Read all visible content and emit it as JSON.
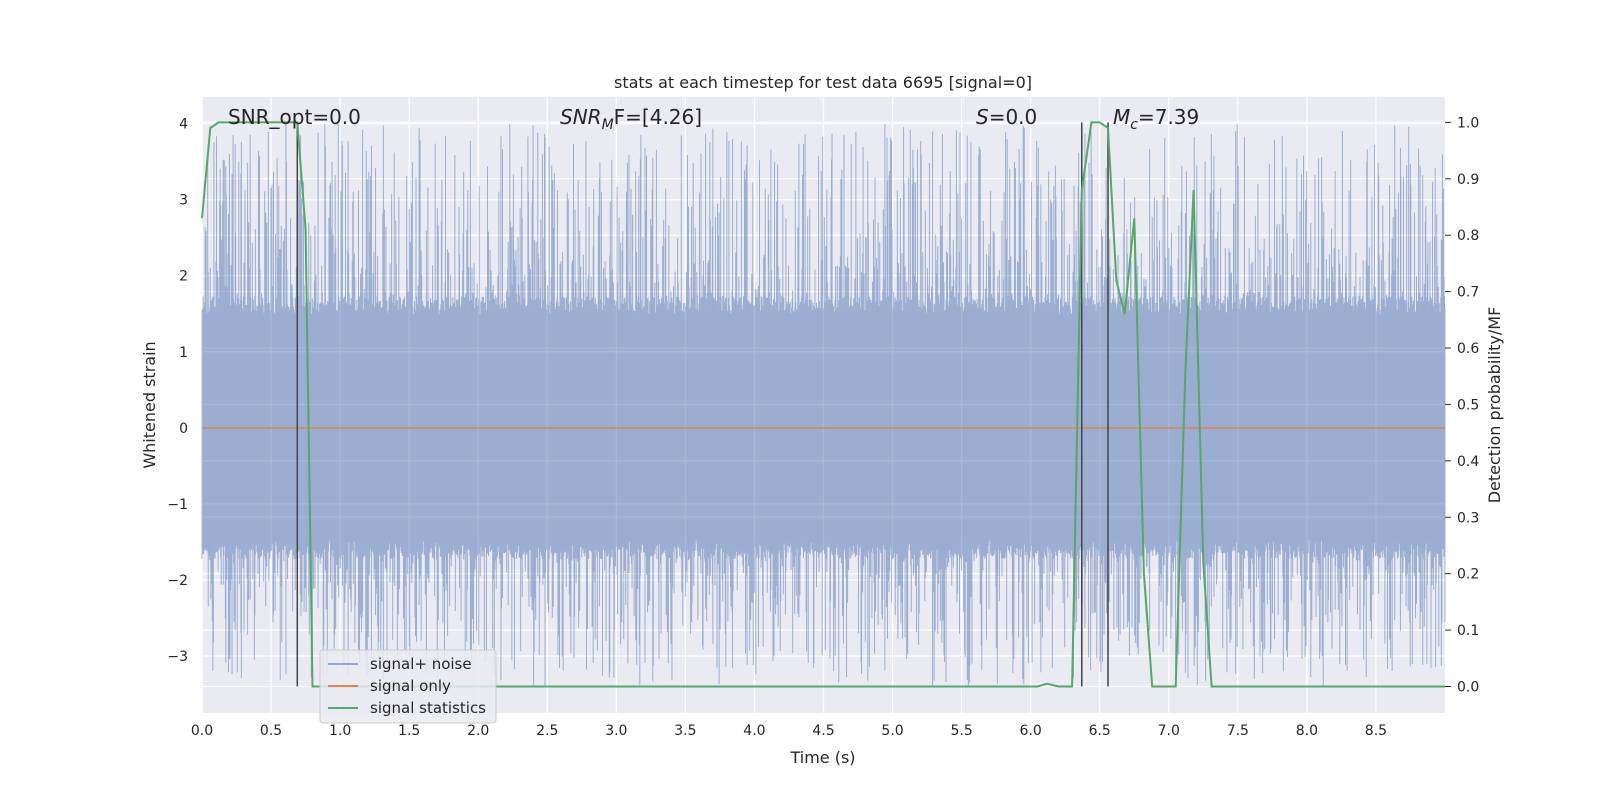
{
  "chart_data": {
    "type": "line",
    "title": "stats at each timestep for test data 6695 [signal=0]",
    "xlabel": "Time (s)",
    "ylabel": "Whitened strain",
    "y2label": "Detection probability/MF",
    "xlim": [
      0,
      9
    ],
    "ylim": [
      -3.75,
      4.35
    ],
    "y2lim": [
      -0.047,
      1.045
    ],
    "x_ticks": [
      "0.0",
      "0.5",
      "1.0",
      "1.5",
      "2.0",
      "2.5",
      "3.0",
      "3.5",
      "4.0",
      "4.5",
      "5.0",
      "5.5",
      "6.0",
      "6.5",
      "7.0",
      "7.5",
      "8.0",
      "8.5"
    ],
    "y_ticks": [
      "−3",
      "−2",
      "−1",
      "0",
      "1",
      "2",
      "3",
      "4"
    ],
    "y2_ticks": [
      "0.0",
      "0.1",
      "0.2",
      "0.3",
      "0.4",
      "0.5",
      "0.6",
      "0.7",
      "0.8",
      "0.9",
      "1.0"
    ],
    "grid": true,
    "legend_position": "lower-left",
    "annotations": {
      "snr_opt": "SNR_opt=0.0",
      "snr_mf_main": "SNR",
      "snr_mf_sub": "M",
      "snr_mf_rest": "F=[4.26]",
      "s_main": "S",
      "s_rest": "=0.0",
      "mc_main": "M",
      "mc_sub": "c",
      "mc_rest": "=7.39"
    },
    "vlines_x": [
      0.69,
      6.37,
      6.56
    ],
    "colors": {
      "noise": "#4c72b0",
      "signal": "#dd8452",
      "stats": "#55a868",
      "vline": "#444444",
      "axes_bg": "#eaeaf2",
      "grid": "#ffffff"
    },
    "series": [
      {
        "name": "signal+ noise",
        "axis": "left",
        "description_kind": "noise",
        "x_range": [
          0,
          9
        ],
        "envelope_upper_typical": 1.6,
        "envelope_lower_typical": -1.6,
        "max": 4.0,
        "min": -3.4
      },
      {
        "name": "signal only",
        "axis": "left",
        "x": [
          0,
          9
        ],
        "y": [
          0,
          0
        ]
      },
      {
        "name": "signal statistics",
        "axis": "right",
        "x": [
          0,
          0.06,
          0.12,
          0.2,
          0.3,
          0.45,
          0.6,
          0.69,
          0.75,
          0.8,
          0.82,
          0.9,
          1.5,
          2.5,
          3.5,
          4.5,
          5.5,
          5.8,
          6.0,
          6.05,
          6.12,
          6.2,
          6.3,
          6.37,
          6.44,
          6.5,
          6.56,
          6.62,
          6.68,
          6.75,
          6.82,
          6.88,
          6.95,
          7.05,
          7.12,
          7.18,
          7.25,
          7.31,
          7.4,
          8.0,
          9.0
        ],
        "y": [
          0.83,
          0.99,
          1.0,
          1.0,
          1.0,
          1.0,
          1.0,
          1.0,
          0.81,
          0.0,
          0.0,
          0.0,
          0.0,
          0.0,
          0.0,
          0.0,
          0.0,
          0.0,
          0.0,
          0.0,
          0.005,
          0.0,
          0.0,
          0.88,
          1.0,
          1.0,
          0.99,
          0.72,
          0.66,
          0.83,
          0.2,
          0.0,
          0.0,
          0.0,
          0.56,
          0.88,
          0.22,
          0.0,
          0.0,
          0.0,
          0.0
        ]
      }
    ]
  }
}
